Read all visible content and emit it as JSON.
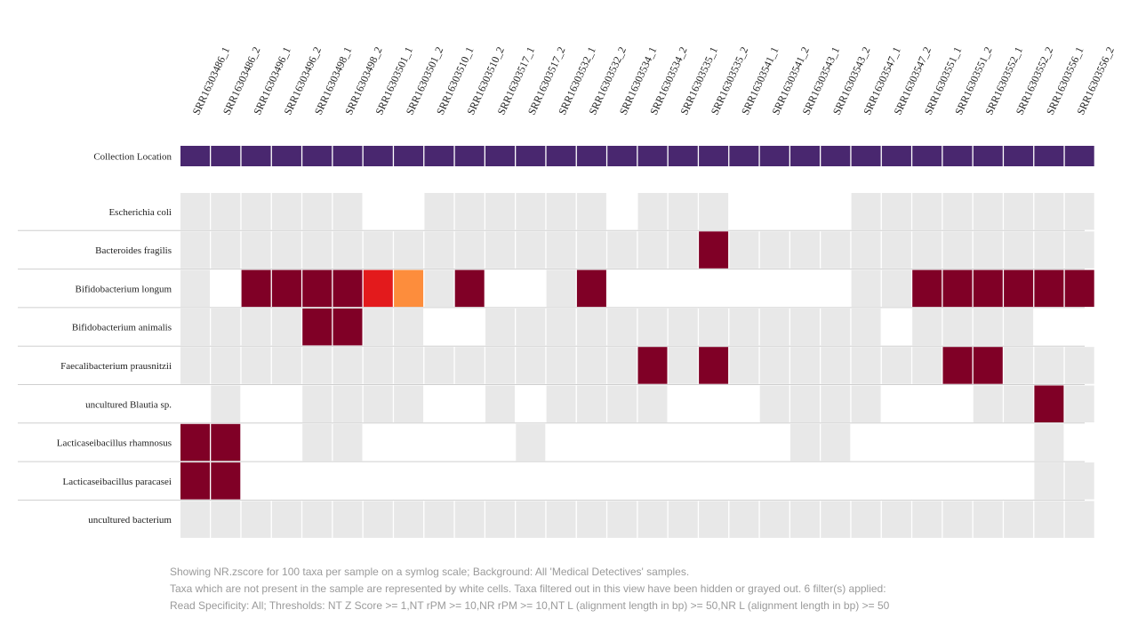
{
  "colors": {
    "absent": "#ffffff",
    "filtered": "#e8e8e8",
    "high": "#800026",
    "mid_high": "#e31a1c",
    "mid": "#fd8d3c",
    "metadata": "#49276f"
  },
  "caption": {
    "line1": "Showing NR.zscore for 100 taxa per sample on a symlog scale; Background: All 'Medical Detectives' samples.",
    "line2": "Taxa which are not present in the sample are represented by white cells. Taxa filtered out in this view have been hidden or grayed out. 6 filter(s) applied:",
    "line3": "Read Specificity: All; Thresholds: NT Z Score >= 1,NT rPM >= 10,NR rPM >= 10,NT L (alignment length in bp) >= 50,NR L (alignment length in bp) >= 50"
  },
  "chart_data": {
    "type": "heatmap",
    "metric": "NR.zscore",
    "scale": "symlog",
    "samples": [
      "SRR16303486_1",
      "SRR16303486_2",
      "SRR16303496_1",
      "SRR16303496_2",
      "SRR16303498_1",
      "SRR16303498_2",
      "SRR16303501_1",
      "SRR16303501_2",
      "SRR16303510_1",
      "SRR16303510_2",
      "SRR16303517_1",
      "SRR16303517_2",
      "SRR16303532_1",
      "SRR16303532_2",
      "SRR16303534_1",
      "SRR16303534_2",
      "SRR16303535_1",
      "SRR16303535_2",
      "SRR16303541_1",
      "SRR16303541_2",
      "SRR16303543_1",
      "SRR16303543_2",
      "SRR16303547_1",
      "SRR16303547_2",
      "SRR16303551_1",
      "SRR16303551_2",
      "SRR16303552_1",
      "SRR16303552_2",
      "SRR16303556_1",
      "SRR16303556_2"
    ],
    "metadata_row": {
      "label": "Collection Location",
      "values": [
        "m",
        "m",
        "m",
        "m",
        "m",
        "m",
        "m",
        "m",
        "m",
        "m",
        "m",
        "m",
        "m",
        "m",
        "m",
        "m",
        "m",
        "m",
        "m",
        "m",
        "m",
        "m",
        "m",
        "m",
        "m",
        "m",
        "m",
        "m",
        "m",
        "m"
      ]
    },
    "legend_codes": {
      "0": "absent (white)",
      "1": "filtered (gray)",
      "2": "high",
      "3": "mid-high",
      "4": "mid"
    },
    "taxa": [
      {
        "name": "Escherichia coli",
        "cells": [
          1,
          1,
          1,
          1,
          1,
          1,
          0,
          0,
          1,
          1,
          1,
          1,
          1,
          1,
          0,
          1,
          1,
          1,
          0,
          0,
          0,
          0,
          1,
          1,
          1,
          1,
          1,
          1,
          1,
          1
        ]
      },
      {
        "name": "Bacteroides fragilis",
        "cells": [
          1,
          1,
          1,
          1,
          1,
          1,
          1,
          1,
          1,
          1,
          1,
          1,
          1,
          1,
          1,
          1,
          1,
          2,
          1,
          1,
          1,
          1,
          1,
          1,
          1,
          1,
          1,
          1,
          1,
          1
        ]
      },
      {
        "name": "Bifidobacterium longum",
        "cells": [
          1,
          0,
          2,
          2,
          2,
          2,
          3,
          4,
          1,
          2,
          0,
          0,
          1,
          2,
          0,
          0,
          0,
          0,
          0,
          0,
          0,
          0,
          1,
          1,
          2,
          2,
          2,
          2,
          2,
          2
        ]
      },
      {
        "name": "Bifidobacterium animalis",
        "cells": [
          1,
          1,
          1,
          1,
          2,
          2,
          1,
          1,
          0,
          0,
          1,
          1,
          1,
          1,
          1,
          1,
          1,
          1,
          1,
          1,
          1,
          1,
          1,
          0,
          1,
          1,
          1,
          1,
          0,
          0
        ]
      },
      {
        "name": "Faecalibacterium prausnitzii",
        "cells": [
          1,
          1,
          1,
          1,
          1,
          1,
          1,
          1,
          1,
          1,
          1,
          1,
          1,
          1,
          1,
          2,
          1,
          2,
          1,
          1,
          1,
          1,
          1,
          1,
          1,
          2,
          2,
          1,
          1,
          1
        ]
      },
      {
        "name": "uncultured Blautia sp.",
        "cells": [
          0,
          1,
          0,
          0,
          1,
          1,
          1,
          1,
          0,
          0,
          1,
          0,
          1,
          1,
          1,
          1,
          0,
          0,
          0,
          1,
          1,
          1,
          1,
          0,
          0,
          0,
          1,
          1,
          2,
          1
        ]
      },
      {
        "name": "Lacticaseibacillus rhamnosus",
        "cells": [
          2,
          2,
          0,
          0,
          1,
          1,
          0,
          0,
          0,
          0,
          0,
          1,
          0,
          0,
          0,
          0,
          0,
          0,
          0,
          0,
          1,
          1,
          0,
          0,
          0,
          0,
          0,
          0,
          1,
          0
        ]
      },
      {
        "name": "Lacticaseibacillus paracasei",
        "cells": [
          2,
          2,
          0,
          0,
          0,
          0,
          0,
          0,
          0,
          0,
          0,
          0,
          0,
          0,
          0,
          0,
          0,
          0,
          0,
          0,
          0,
          0,
          0,
          0,
          0,
          0,
          0,
          0,
          1,
          1
        ]
      },
      {
        "name": "uncultured bacterium",
        "cells": [
          1,
          1,
          1,
          1,
          1,
          1,
          1,
          1,
          1,
          1,
          1,
          1,
          1,
          1,
          1,
          1,
          1,
          1,
          1,
          1,
          1,
          1,
          1,
          1,
          1,
          1,
          1,
          1,
          1,
          1
        ]
      }
    ]
  }
}
